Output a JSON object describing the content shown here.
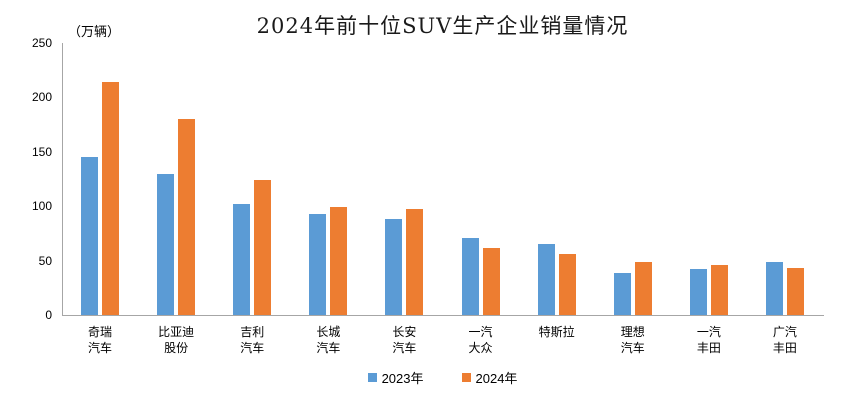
{
  "chart_data": {
    "type": "bar",
    "title": "2024年前十位SUV生产企业销量情况",
    "unit_label": "（万辆）",
    "xlabel": "",
    "ylabel": "万辆",
    "ylim": [
      0,
      250
    ],
    "yticks": [
      0,
      50,
      100,
      150,
      200,
      250
    ],
    "grid": false,
    "legend_position": "bottom",
    "categories": [
      "奇瑞汽车",
      "比亚迪股份",
      "吉利汽车",
      "长城汽车",
      "长安汽车",
      "一汽大众",
      "特斯拉",
      "理想汽车",
      "一汽丰田",
      "广汽丰田"
    ],
    "categories_display": [
      [
        "奇瑞",
        "汽车"
      ],
      [
        "比亚迪",
        "股份"
      ],
      [
        "吉利",
        "汽车"
      ],
      [
        "长城",
        "汽车"
      ],
      [
        "长安",
        "汽车"
      ],
      [
        "一汽",
        "大众"
      ],
      [
        "特斯拉"
      ],
      [
        "理想",
        "汽车"
      ],
      [
        "一汽",
        "丰田"
      ],
      [
        "广汽",
        "丰田"
      ]
    ],
    "series": [
      {
        "name": "2023年",
        "color": "#5B9BD5",
        "values": [
          145,
          130,
          102,
          93,
          88,
          71,
          65,
          39,
          42,
          49
        ]
      },
      {
        "name": "2024年",
        "color": "#ED7D31",
        "values": [
          214,
          180,
          124,
          99,
          97,
          62,
          56,
          49,
          46,
          43
        ]
      }
    ],
    "axis_color": "#a6a6a6"
  }
}
